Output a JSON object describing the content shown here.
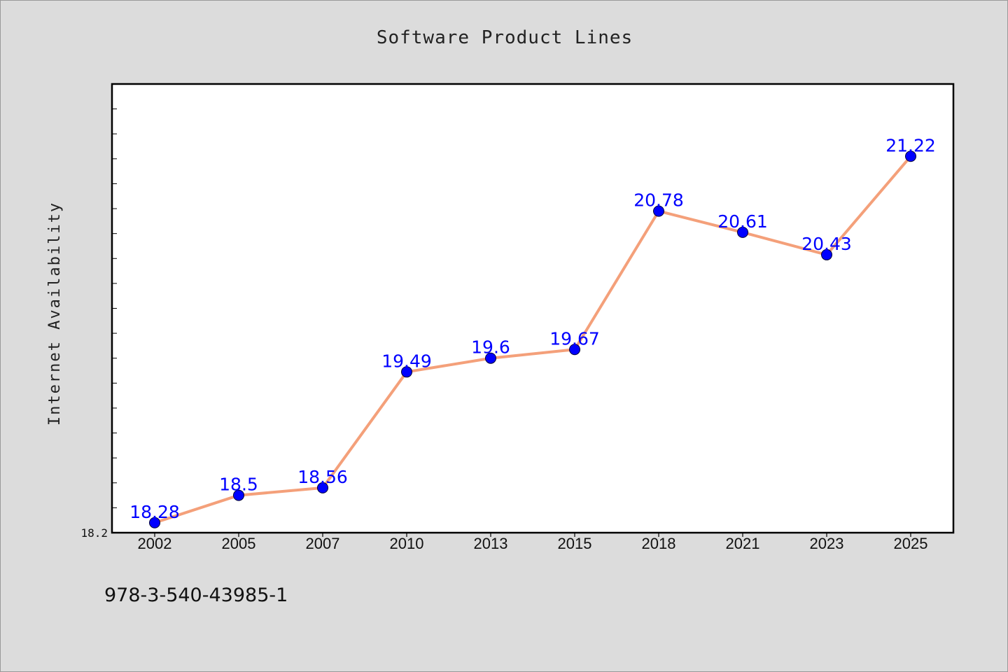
{
  "chart_data": {
    "type": "line",
    "title": "Software Product Lines",
    "xlabel": "",
    "ylabel": "Internet Availability",
    "categories": [
      "2002",
      "2005",
      "2007",
      "2010",
      "2013",
      "2015",
      "2018",
      "2021",
      "2023",
      "2025"
    ],
    "series": [
      {
        "values": [
          18.28,
          18.5,
          18.56,
          19.49,
          19.6,
          19.67,
          20.78,
          20.61,
          20.43,
          21.22
        ],
        "data_labels": [
          "18.28",
          "18.5",
          "18.56",
          "19.49",
          "19.6",
          "19.67",
          "20.78",
          "20.61",
          "20.43",
          "21.22"
        ],
        "line_color": "#f4a07a",
        "marker_color": "#0000ff"
      }
    ],
    "ylim": [
      18.2,
      21.8
    ],
    "y_tick_labels": [
      "18.2"
    ],
    "y_minor_tick_step": 0.2,
    "grid": false,
    "legend": "none"
  },
  "footnote": "978-3-540-43985-1",
  "colors": {
    "background": "#dcdcdc",
    "plot_area": "#ffffff",
    "line": "#f4a07a",
    "marker": "#0000ff",
    "data_label": "#0000ff"
  }
}
